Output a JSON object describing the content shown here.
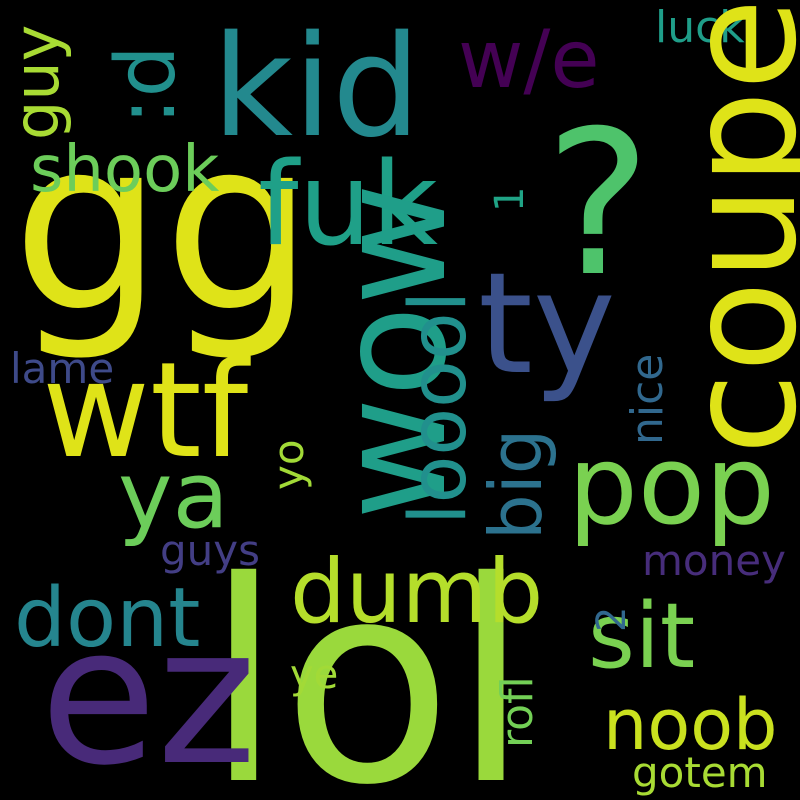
{
  "background": "#000000",
  "words": {
    "lol": {
      "text": "lol",
      "color": "#9ad93c"
    },
    "gg": {
      "text": "gg",
      "color": "#dfe318"
    },
    "ez": {
      "text": "ez",
      "color": "#482a79"
    },
    "coupe": {
      "text": "coupe",
      "color": "#dfe318"
    },
    "q": {
      "text": "?",
      "color": "#4ec36b"
    },
    "wow": {
      "text": "wow",
      "color": "#1f9e89"
    },
    "kid": {
      "text": "kid",
      "color": "#23898e"
    },
    "ty": {
      "text": "ty",
      "color": "#3b518b"
    },
    "wtf": {
      "text": "wtf",
      "color": "#dfe318"
    },
    "fuk": {
      "text": "fuk",
      "color": "#1fa088"
    },
    "pop": {
      "text": "pop",
      "color": "#7ad151"
    },
    "ya": {
      "text": "ya",
      "color": "#6ccd5a"
    },
    "dumb": {
      "text": "dumb",
      "color": "#b5de2b"
    },
    "sit": {
      "text": "sit",
      "color": "#7ad151"
    },
    "dont": {
      "text": "dont",
      "color": "#25858e"
    },
    "noob": {
      "text": "noob",
      "color": "#cae11f"
    },
    "looool": {
      "text": "looool",
      "color": "#21908d"
    },
    "we": {
      "text": "w/e",
      "color": "#440154"
    },
    "d": {
      "text": ":d",
      "color": "#21908d"
    },
    "shook": {
      "text": "shook",
      "color": "#6ccd5a"
    },
    "big": {
      "text": "big",
      "color": "#2c728e"
    },
    "guy": {
      "text": "guy",
      "color": "#a8db34"
    },
    "luck": {
      "text": "luck",
      "color": "#1f9e89"
    },
    "one": {
      "text": "1",
      "color": "#20a486"
    },
    "lame": {
      "text": "lame",
      "color": "#3e4a89"
    },
    "nice": {
      "text": "nice",
      "color": "#31688e"
    },
    "yo": {
      "text": "yo",
      "color": "#a2da37"
    },
    "guys": {
      "text": "guys",
      "color": "#433e85"
    },
    "money": {
      "text": "money",
      "color": "#472d7b"
    },
    "two": {
      "text": "2",
      "color": "#31688e"
    },
    "rofl": {
      "text": "rofl",
      "color": "#73d056"
    },
    "ye": {
      "text": "ye",
      "color": "#a2da37"
    },
    "gotem": {
      "text": "gotem",
      "color": "#a8db34"
    }
  }
}
